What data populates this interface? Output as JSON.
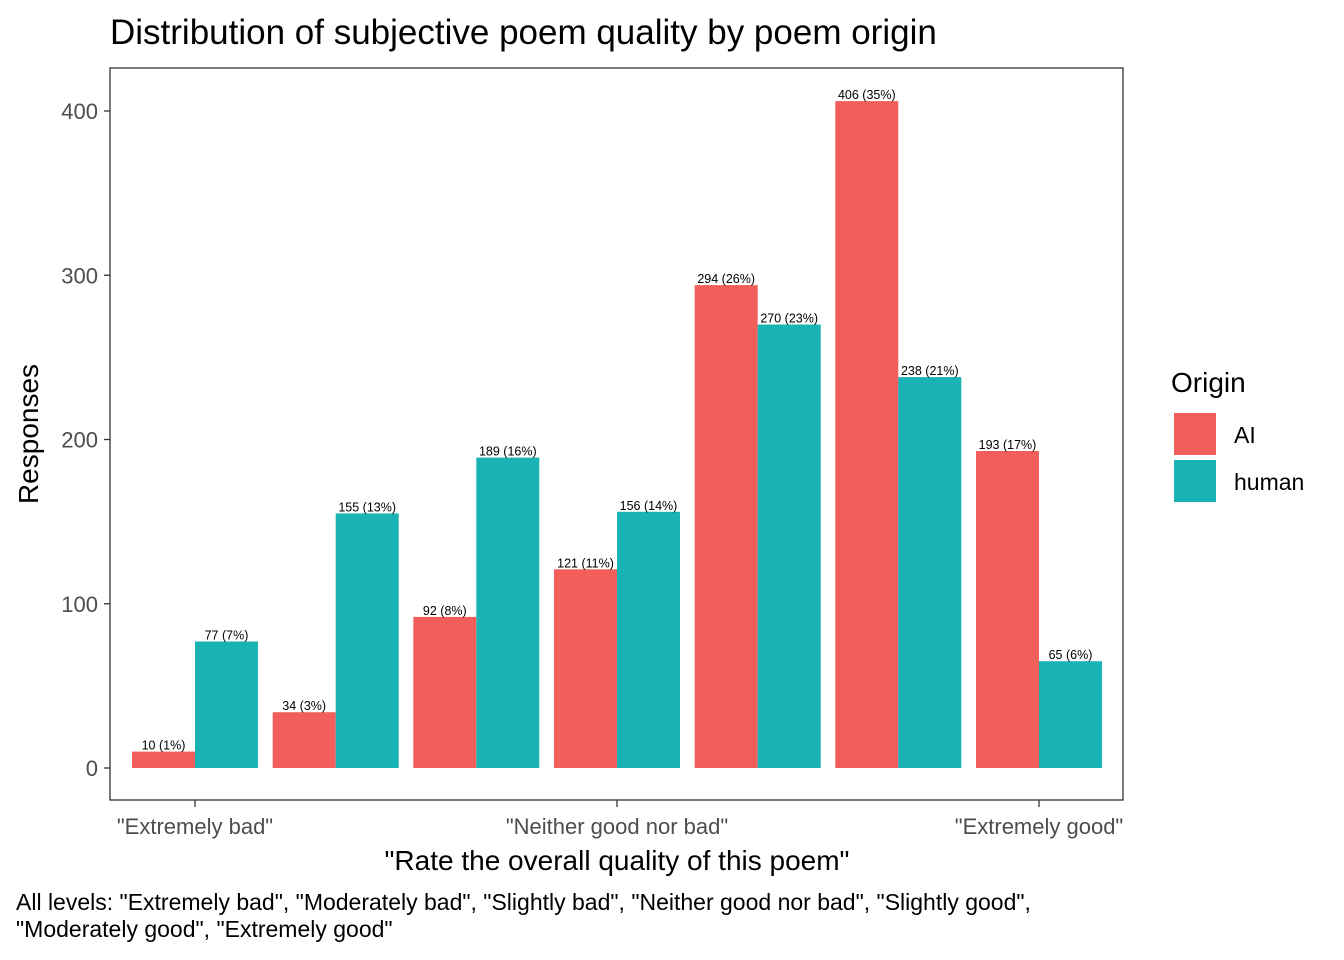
{
  "chart_data": {
    "type": "bar",
    "title": "Distribution of subjective poem quality by poem origin",
    "xlabel": "\"Rate the overall quality of this poem\"",
    "ylabel": "Responses",
    "ylim": [
      0,
      420
    ],
    "yticks": [
      0,
      100,
      200,
      300,
      400
    ],
    "categories": [
      "\"Extremely bad\"",
      "\"Moderately bad\"",
      "\"Slightly bad\"",
      "\"Neither good nor bad\"",
      "\"Slightly good\"",
      "\"Moderately good\"",
      "\"Extremely good\""
    ],
    "xtick_labels": [
      {
        "category_index": 0,
        "label": "\"Extremely bad\""
      },
      {
        "category_index": 3,
        "label": "\"Neither good nor bad\""
      },
      {
        "category_index": 6,
        "label": "\"Extremely good\""
      }
    ],
    "legend_title": "Origin",
    "legend_position": "right",
    "grid": false,
    "series": [
      {
        "name": "AI",
        "color": "#F25E5A",
        "values": [
          10,
          34,
          92,
          121,
          294,
          406,
          193
        ],
        "labels": [
          "10 (1%)",
          "34 (3%)",
          "92 (8%)",
          "121 (11%)",
          "294 (26%)",
          "406 (35%)",
          "193 (17%)"
        ]
      },
      {
        "name": "human",
        "color": "#19B3B6",
        "values": [
          77,
          155,
          189,
          156,
          270,
          238,
          65
        ],
        "labels": [
          "77 (7%)",
          "155 (13%)",
          "189 (16%)",
          "156 (14%)",
          "270 (23%)",
          "238 (21%)",
          "65 (6%)"
        ]
      }
    ]
  },
  "caption": "All levels: \"Extremely bad\", \"Moderately bad\", \"Slightly bad\", \"Neither good nor bad\", \"Slightly good\", \"Moderately good\", \"Extremely good\""
}
